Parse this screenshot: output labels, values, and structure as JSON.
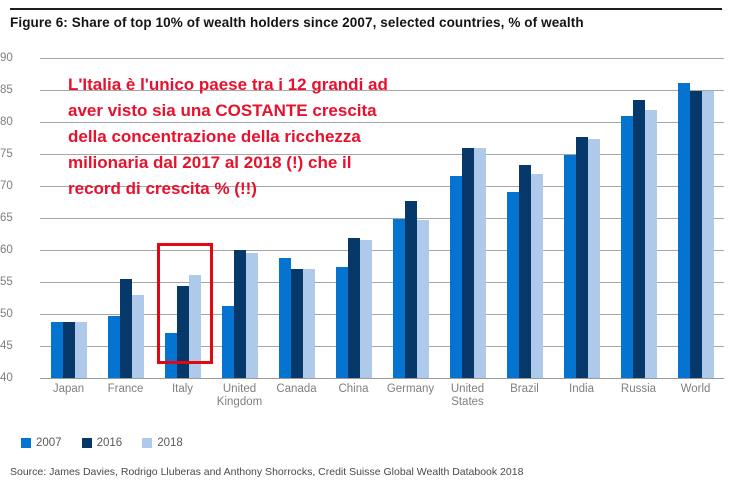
{
  "figure": {
    "title": "Figure 6: Share of top 10% of wealth holders since 2007, selected countries, % of wealth",
    "source": "Source: James Davies, Rodrigo Lluberas and Anthony Shorrocks, Credit Suisse Global Wealth Databook 2018"
  },
  "annotation": {
    "text": "L'Italia è l'unico paese tra i 12 grandi ad\naver visto sia una COSTANTE crescita\ndella concentrazione della ricchezza\nmilionaria dal 2017 al 2018 (!) che il\nrecord di crescita % (!!)",
    "color": "#e8112d",
    "box_color": "#e30613",
    "highlighted_country": "Italy"
  },
  "chart_data": {
    "type": "bar",
    "title": "Share of top 10% of wealth holders since 2007, selected countries, % of wealth",
    "categories": [
      "Japan",
      "France",
      "Italy",
      "United Kingdom",
      "Canada",
      "China",
      "Germany",
      "United States",
      "Brazil",
      "India",
      "Russia",
      "World"
    ],
    "series": [
      {
        "name": "2007",
        "color": "#0574d0",
        "values": [
          48.8,
          49.7,
          47.0,
          51.2,
          58.7,
          57.3,
          64.9,
          71.6,
          69.1,
          74.8,
          80.9,
          86.1
        ]
      },
      {
        "name": "2016",
        "color": "#06386a",
        "values": [
          48.7,
          55.4,
          54.3,
          60.0,
          57.0,
          61.9,
          67.7,
          76.0,
          73.3,
          77.6,
          83.5,
          84.8
        ]
      },
      {
        "name": "2018",
        "color": "#aec9e9",
        "values": [
          48.7,
          53.0,
          56.1,
          59.5,
          57.0,
          61.6,
          64.7,
          75.9,
          71.8,
          77.4,
          81.9,
          84.8
        ]
      }
    ],
    "ylim": [
      40,
      90
    ],
    "ytick_step": 5,
    "yticks": [
      40,
      45,
      50,
      55,
      60,
      65,
      70,
      75,
      80,
      85,
      90
    ],
    "grid": "horizontal",
    "grid_color": "#a6a6a6",
    "axis_label_color": "#7f7f7f",
    "legend_position": "bottom-left",
    "legend_labels": [
      "2007",
      "2016",
      "2018"
    ]
  }
}
